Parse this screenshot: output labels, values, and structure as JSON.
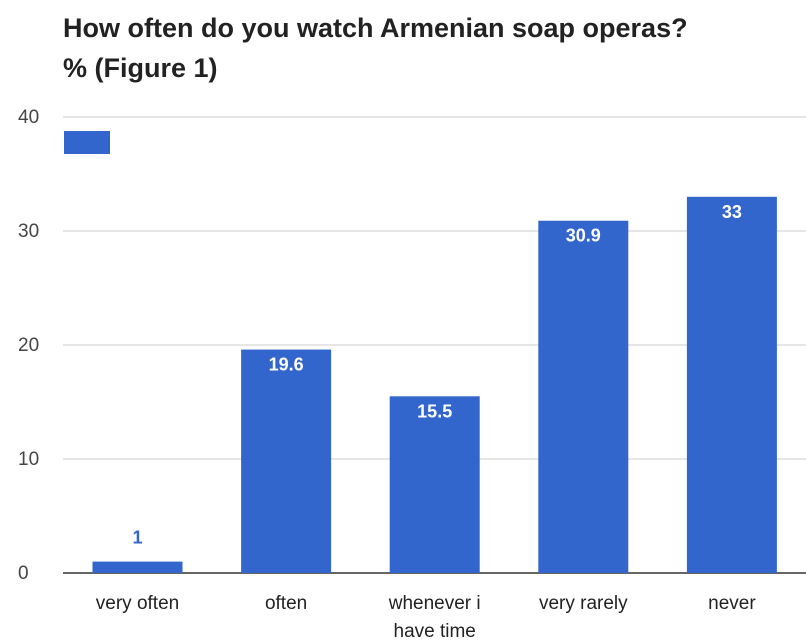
{
  "chart_data": {
    "type": "bar",
    "title": "How often do you watch Armenian soap operas? % (Figure 1)",
    "title_lines": [
      "How often do you watch Armenian soap operas?",
      "% (Figure 1)"
    ],
    "categories": [
      "very often",
      "often",
      "whenever i have time",
      "very rarely",
      "never"
    ],
    "category_lines": [
      [
        "very often"
      ],
      [
        "often"
      ],
      [
        "whenever i",
        "have time"
      ],
      [
        "very rarely"
      ],
      [
        "never"
      ]
    ],
    "series": [
      {
        "values": [
          1,
          19.6,
          15.5,
          30.9,
          33
        ],
        "color": "#3366cc"
      }
    ],
    "data_labels": [
      "1",
      "19.6",
      "15.5",
      "30.9",
      "33"
    ],
    "ylim": [
      0,
      40
    ],
    "yticks": [
      0,
      10,
      20,
      30,
      40
    ],
    "ytick_labels": [
      "0",
      "10",
      "20",
      "30",
      "40"
    ],
    "xlabel": "",
    "ylabel": "",
    "grid": true,
    "legend": "top-left",
    "colors": {
      "bar": "#3366cc",
      "label_inside": "#ffffff",
      "label_outside": "#3366cc",
      "grid": "#cccccc",
      "axis": "#333333"
    }
  }
}
